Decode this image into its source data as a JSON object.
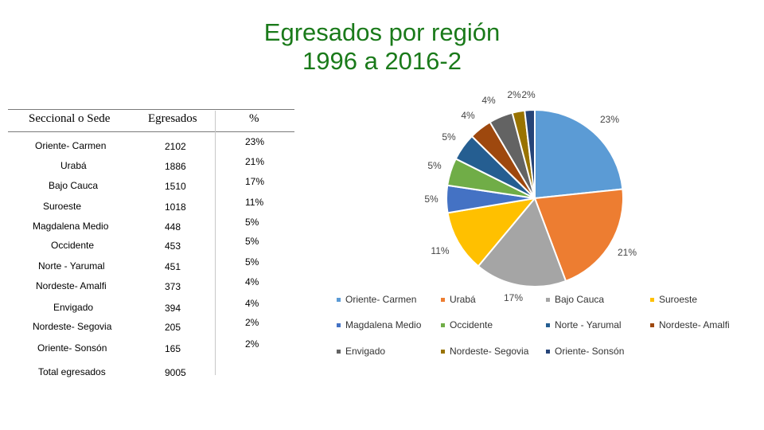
{
  "title_line1": "Egresados por región",
  "title_line2": "1996 a 2016-2",
  "table": {
    "headers": [
      "Seccional o Sede",
      "Egresados",
      "%"
    ],
    "rows": [
      {
        "sede": "Oriente- Carmen",
        "egresados": "2102",
        "pct": "23%"
      },
      {
        "sede": "Urabá",
        "egresados": "1886",
        "pct": "21%"
      },
      {
        "sede": "Bajo Cauca",
        "egresados": "1510",
        "pct": "17%"
      },
      {
        "sede": "Suroeste",
        "egresados": "1018",
        "pct": "11%"
      },
      {
        "sede": "Magdalena Medio",
        "egresados": "448",
        "pct": "5%"
      },
      {
        "sede": "Occidente",
        "egresados": "453",
        "pct": "5%"
      },
      {
        "sede": "Norte - Yarumal",
        "egresados": "451",
        "pct": "5%"
      },
      {
        "sede": "Nordeste- Amalfi",
        "egresados": "373",
        "pct": "4%"
      },
      {
        "sede": "Envigado",
        "egresados": "394",
        "pct": "4%"
      },
      {
        "sede": "Nordeste- Segovia",
        "egresados": "205",
        "pct": "2%"
      },
      {
        "sede": "Oriente- Sonsón",
        "egresados": "165",
        "pct": "2%"
      }
    ],
    "total_label": "Total egresados",
    "total_value": "9005"
  },
  "chart_data": {
    "type": "pie",
    "title": "Egresados por región 1996 a 2016-2",
    "categories": [
      "Oriente- Carmen",
      "Urabá",
      "Bajo Cauca",
      "Suroeste",
      "Magdalena Medio",
      "Occidente",
      "Norte - Yarumal",
      "Nordeste- Amalfi",
      "Envigado",
      "Nordeste- Segovia",
      "Oriente- Sonsón"
    ],
    "values": [
      2102,
      1886,
      1510,
      1018,
      448,
      453,
      451,
      373,
      394,
      205,
      165
    ],
    "data_labels": [
      "23%",
      "21%",
      "17%",
      "11%",
      "5%",
      "5%",
      "5%",
      "4%",
      "4%",
      "2%",
      "2%"
    ],
    "colors": [
      "#5B9BD5",
      "#ED7D31",
      "#A5A5A5",
      "#FFC000",
      "#4472C4",
      "#70AD47",
      "#255E91",
      "#9E480E",
      "#636363",
      "#997300",
      "#264478"
    ],
    "legend_position": "bottom"
  }
}
